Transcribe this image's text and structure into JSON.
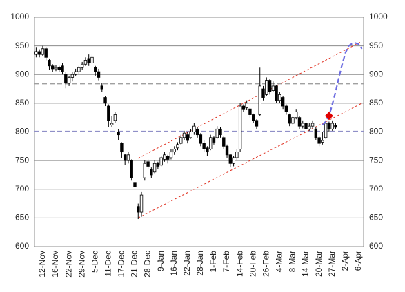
{
  "chart_data": {
    "type": "candlestick",
    "categories": [
      null,
      null,
      "12-Nov",
      null,
      null,
      null,
      "16-Nov",
      null,
      null,
      null,
      "22-Nov",
      null,
      null,
      null,
      "29-Nov",
      null,
      null,
      null,
      "5-Dec",
      null,
      null,
      null,
      "11-Dec",
      null,
      null,
      null,
      "17-Dec",
      null,
      null,
      null,
      "21-Dec",
      null,
      null,
      null,
      "28-Dec",
      null,
      null,
      null,
      "9-Jan",
      null,
      null,
      null,
      "16-Jan",
      null,
      null,
      null,
      "22-Jan",
      null,
      null,
      null,
      "28-Jan",
      null,
      null,
      null,
      "1-Feb",
      null,
      null,
      null,
      "7-Feb",
      null,
      null,
      null,
      "14-Feb",
      null,
      null,
      null,
      "20-Feb",
      null,
      null,
      null,
      "26-Feb",
      null,
      null,
      null,
      "4-Mar",
      null,
      null,
      null,
      "8-Mar",
      null,
      null,
      null,
      "14-Mar",
      null,
      null,
      null,
      "20-Mar",
      null,
      null,
      null,
      "27-Mar",
      null,
      null,
      null,
      "2-Apr",
      null,
      null,
      null,
      "6-Apr",
      null
    ],
    "candles": [
      [
        935,
        948,
        930,
        940
      ],
      [
        940,
        944,
        930,
        935
      ],
      [
        935,
        950,
        932,
        945
      ],
      [
        945,
        948,
        925,
        930
      ],
      [
        925,
        928,
        908,
        915
      ],
      [
        915,
        918,
        905,
        910
      ],
      [
        910,
        916,
        906,
        912
      ],
      [
        912,
        915,
        904,
        908
      ],
      [
        915,
        920,
        900,
        905
      ],
      [
        900,
        905,
        876,
        885
      ],
      [
        885,
        898,
        880,
        895
      ],
      [
        895,
        905,
        888,
        900
      ],
      [
        900,
        910,
        898,
        905
      ],
      [
        905,
        915,
        900,
        912
      ],
      [
        912,
        922,
        908,
        918
      ],
      [
        918,
        930,
        915,
        925
      ],
      [
        928,
        935,
        915,
        920
      ],
      [
        920,
        935,
        918,
        930
      ],
      [
        912,
        915,
        898,
        905
      ],
      [
        905,
        910,
        890,
        895
      ],
      [
        880,
        885,
        870,
        875
      ],
      [
        860,
        862,
        845,
        850
      ],
      [
        845,
        848,
        808,
        820
      ],
      [
        812,
        828,
        808,
        815
      ],
      [
        820,
        835,
        815,
        830
      ],
      [
        800,
        805,
        785,
        795
      ],
      [
        780,
        782,
        755,
        765
      ],
      [
        760,
        762,
        742,
        750
      ],
      [
        750,
        765,
        745,
        760
      ],
      [
        750,
        752,
        715,
        720
      ],
      [
        712,
        715,
        698,
        705
      ],
      [
        670,
        675,
        648,
        660
      ],
      [
        660,
        695,
        652,
        690
      ],
      [
        720,
        750,
        715,
        745
      ],
      [
        748,
        752,
        735,
        740
      ],
      [
        735,
        738,
        720,
        725
      ],
      [
        730,
        750,
        728,
        745
      ],
      [
        745,
        748,
        735,
        740
      ],
      [
        742,
        758,
        740,
        755
      ],
      [
        752,
        765,
        748,
        760
      ],
      [
        758,
        760,
        745,
        752
      ],
      [
        755,
        770,
        752,
        765
      ],
      [
        765,
        775,
        760,
        770
      ],
      [
        772,
        782,
        768,
        778
      ],
      [
        780,
        795,
        778,
        790
      ],
      [
        790,
        802,
        785,
        798
      ],
      [
        795,
        800,
        780,
        785
      ],
      [
        790,
        805,
        788,
        800
      ],
      [
        800,
        815,
        795,
        810
      ],
      [
        805,
        808,
        790,
        795
      ],
      [
        795,
        798,
        775,
        780
      ],
      [
        780,
        785,
        765,
        770
      ],
      [
        772,
        775,
        758,
        765
      ],
      [
        770,
        795,
        768,
        790
      ],
      [
        790,
        792,
        778,
        782
      ],
      [
        790,
        810,
        788,
        805
      ],
      [
        805,
        808,
        790,
        795
      ],
      [
        790,
        792,
        770,
        775
      ],
      [
        775,
        778,
        755,
        760
      ],
      [
        760,
        762,
        738,
        745
      ],
      [
        745,
        758,
        740,
        755
      ],
      [
        755,
        770,
        750,
        765
      ],
      [
        770,
        850,
        765,
        845
      ],
      [
        845,
        848,
        835,
        840
      ],
      [
        842,
        855,
        838,
        850
      ],
      [
        840,
        842,
        825,
        830
      ],
      [
        830,
        832,
        815,
        820
      ],
      [
        820,
        822,
        805,
        810
      ],
      [
        830,
        912,
        828,
        880
      ],
      [
        875,
        880,
        855,
        860
      ],
      [
        865,
        895,
        862,
        890
      ],
      [
        890,
        892,
        865,
        870
      ],
      [
        872,
        888,
        870,
        880
      ],
      [
        880,
        882,
        850,
        855
      ],
      [
        855,
        870,
        850,
        865
      ],
      [
        860,
        862,
        840,
        845
      ],
      [
        845,
        848,
        830,
        835
      ],
      [
        830,
        832,
        810,
        815
      ],
      [
        815,
        828,
        812,
        825
      ],
      [
        825,
        840,
        822,
        835
      ],
      [
        825,
        828,
        805,
        810
      ],
      [
        810,
        820,
        806,
        815
      ],
      [
        815,
        818,
        800,
        805
      ],
      [
        805,
        815,
        802,
        810
      ],
      [
        810,
        820,
        806,
        815
      ],
      [
        805,
        808,
        785,
        790
      ],
      [
        790,
        792,
        775,
        780
      ],
      [
        782,
        800,
        778,
        785
      ],
      [
        790,
        820,
        788,
        815
      ],
      [
        815,
        818,
        800,
        805
      ],
      [
        805,
        820,
        802,
        815
      ],
      [
        812,
        816,
        805,
        808
      ],
      null,
      null,
      null,
      null,
      null,
      null,
      null,
      null
    ],
    "projection": {
      "color": "#6b6be0",
      "values": [
        null,
        null,
        null,
        null,
        null,
        null,
        null,
        null,
        null,
        null,
        null,
        null,
        null,
        null,
        null,
        null,
        null,
        null,
        null,
        null,
        null,
        null,
        null,
        null,
        null,
        null,
        null,
        null,
        null,
        null,
        null,
        null,
        null,
        null,
        null,
        null,
        null,
        null,
        null,
        null,
        null,
        null,
        null,
        null,
        null,
        null,
        null,
        null,
        null,
        null,
        null,
        null,
        null,
        null,
        null,
        null,
        null,
        null,
        null,
        null,
        null,
        null,
        null,
        null,
        null,
        null,
        null,
        null,
        null,
        null,
        null,
        null,
        null,
        null,
        null,
        null,
        null,
        null,
        null,
        null,
        null,
        null,
        null,
        null,
        null,
        null,
        null,
        812,
        818,
        828,
        848,
        870,
        895,
        918,
        938,
        950,
        954,
        955,
        953,
        945
      ]
    },
    "marker": {
      "index": 89,
      "value": 828,
      "color": "#e00000"
    },
    "channel": {
      "color": "#e03020",
      "lines": [
        {
          "start_index": 31,
          "end_index": 99,
          "values": [
            754,
            958
          ]
        },
        {
          "start_index": 31,
          "end_index": 99,
          "values": [
            650,
            850
          ]
        }
      ]
    },
    "hlines": [
      {
        "value": 884,
        "color": "#a0a0a0"
      },
      {
        "value": 801,
        "color": "#9090c8"
      }
    ],
    "ylim": [
      600,
      1000
    ],
    "yticks": [
      600,
      650,
      700,
      750,
      800,
      850,
      900,
      950,
      1000
    ],
    "y2lim": [
      600,
      1000
    ],
    "y2ticks": [
      600,
      650,
      700,
      750,
      800,
      850,
      900,
      950,
      1000
    ],
    "grid": true
  }
}
